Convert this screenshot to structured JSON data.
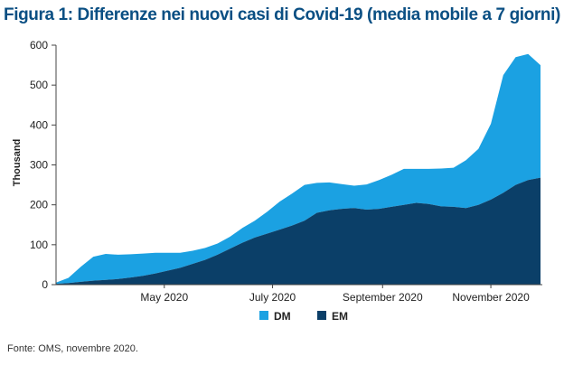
{
  "title": "Figura 1: Differenze nei nuovi casi di Covid-19 (media mobile a 7 giorni)",
  "source": "Fonte: OMS, novembre 2020.",
  "colors": {
    "DM": "#1ba1e2",
    "EM": "#0b3f68"
  },
  "chart_data": {
    "type": "area",
    "stacked": true,
    "title": "Figura 1: Differenze nei nuovi casi di Covid-19 (media mobile a 7 giorni)",
    "ylabel": "Thousand",
    "xlabel": "",
    "ylim": [
      0,
      600
    ],
    "yticks": [
      0,
      100,
      200,
      300,
      400,
      500,
      600
    ],
    "xlim": [
      "2020-03-01",
      "2020-11-30"
    ],
    "xticks": [
      {
        "date": "2020-05-01",
        "label": "May 2020"
      },
      {
        "date": "2020-07-01",
        "label": "July 2020"
      },
      {
        "date": "2020-09-01",
        "label": "September 2020"
      },
      {
        "date": "2020-11-01",
        "label": "November 2020"
      }
    ],
    "legend": {
      "position": "bottom",
      "entries": [
        "DM",
        "EM"
      ]
    },
    "grid": false,
    "x": [
      "2020-03-01",
      "2020-03-08",
      "2020-03-15",
      "2020-03-22",
      "2020-03-29",
      "2020-04-05",
      "2020-04-12",
      "2020-04-19",
      "2020-04-26",
      "2020-05-03",
      "2020-05-10",
      "2020-05-17",
      "2020-05-24",
      "2020-05-31",
      "2020-06-07",
      "2020-06-14",
      "2020-06-21",
      "2020-06-28",
      "2020-07-05",
      "2020-07-12",
      "2020-07-19",
      "2020-07-26",
      "2020-08-02",
      "2020-08-09",
      "2020-08-16",
      "2020-08-23",
      "2020-08-30",
      "2020-09-06",
      "2020-09-13",
      "2020-09-20",
      "2020-09-27",
      "2020-10-04",
      "2020-10-11",
      "2020-10-18",
      "2020-10-25",
      "2020-11-01",
      "2020-11-08",
      "2020-11-15",
      "2020-11-22",
      "2020-11-29"
    ],
    "series": [
      {
        "name": "EM",
        "values": [
          2,
          4,
          7,
          10,
          12,
          14,
          18,
          22,
          28,
          35,
          42,
          52,
          62,
          75,
          90,
          105,
          118,
          128,
          138,
          148,
          160,
          180,
          186,
          190,
          192,
          188,
          190,
          195,
          200,
          205,
          202,
          196,
          195,
          192,
          200,
          213,
          230,
          250,
          262,
          268
        ]
      },
      {
        "name": "DM",
        "values": [
          3,
          13,
          38,
          60,
          65,
          61,
          58,
          56,
          52,
          45,
          38,
          33,
          30,
          28,
          30,
          37,
          42,
          55,
          70,
          80,
          90,
          75,
          70,
          62,
          56,
          63,
          72,
          80,
          90,
          85,
          88,
          95,
          98,
          120,
          140,
          190,
          295,
          320,
          316,
          282
        ]
      }
    ]
  }
}
